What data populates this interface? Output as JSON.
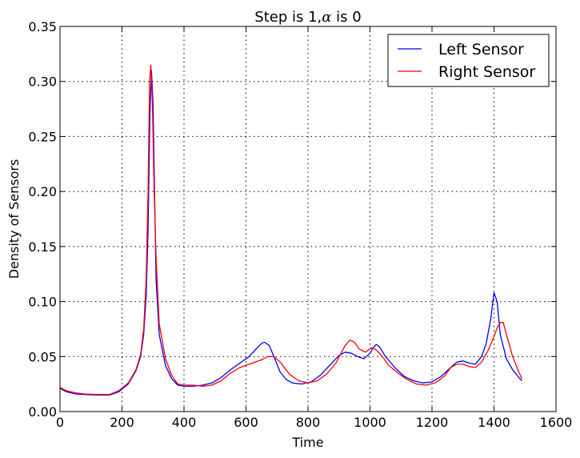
{
  "chart_data": {
    "type": "line",
    "title_prefix": "Step is 1,",
    "title_symbol": "α",
    "title_suffix": " is 0",
    "xlabel": "Time",
    "ylabel": "Density of Sensors",
    "xlim": [
      0,
      1600
    ],
    "ylim": [
      0,
      0.35
    ],
    "xticks": [
      0,
      200,
      400,
      600,
      800,
      1000,
      1200,
      1400,
      1600
    ],
    "xtick_labels": [
      "0",
      "200",
      "400",
      "600",
      "800",
      "1000",
      "1200",
      "1400",
      "1600"
    ],
    "yticks": [
      0,
      0.05,
      0.1,
      0.15,
      0.2,
      0.25,
      0.3,
      0.35
    ],
    "ytick_labels": [
      "0.00",
      "0.05",
      "0.10",
      "0.15",
      "0.20",
      "0.25",
      "0.30",
      "0.35"
    ],
    "grid": true,
    "legend_position": "top-right",
    "series": [
      {
        "name": "Left Sensor",
        "color": "#0000ff",
        "x": [
          0,
          20,
          50,
          80,
          120,
          160,
          190,
          220,
          245,
          260,
          270,
          278,
          284,
          290,
          295,
          300,
          305,
          310,
          320,
          340,
          360,
          380,
          400,
          430,
          460,
          490,
          520,
          550,
          580,
          610,
          630,
          650,
          660,
          675,
          690,
          710,
          730,
          750,
          780,
          810,
          840,
          870,
          900,
          920,
          940,
          960,
          980,
          1000,
          1010,
          1020,
          1030,
          1050,
          1080,
          1110,
          1140,
          1170,
          1200,
          1230,
          1260,
          1280,
          1300,
          1320,
          1340,
          1360,
          1375,
          1390,
          1400,
          1410,
          1420,
          1440,
          1460,
          1480,
          1490
        ],
        "y": [
          0.021,
          0.018,
          0.016,
          0.0155,
          0.015,
          0.015,
          0.018,
          0.025,
          0.037,
          0.05,
          0.07,
          0.105,
          0.165,
          0.27,
          0.31,
          0.28,
          0.2,
          0.12,
          0.07,
          0.042,
          0.03,
          0.024,
          0.023,
          0.023,
          0.024,
          0.026,
          0.031,
          0.038,
          0.044,
          0.05,
          0.056,
          0.062,
          0.063,
          0.06,
          0.05,
          0.036,
          0.029,
          0.026,
          0.025,
          0.027,
          0.033,
          0.042,
          0.051,
          0.054,
          0.053,
          0.05,
          0.048,
          0.053,
          0.058,
          0.061,
          0.059,
          0.05,
          0.04,
          0.032,
          0.028,
          0.026,
          0.027,
          0.032,
          0.04,
          0.045,
          0.046,
          0.044,
          0.043,
          0.05,
          0.062,
          0.085,
          0.108,
          0.1,
          0.07,
          0.048,
          0.038,
          0.031,
          0.028
        ]
      },
      {
        "name": "Right Sensor",
        "color": "#ff0000",
        "x": [
          0,
          20,
          50,
          80,
          120,
          160,
          190,
          220,
          245,
          260,
          270,
          278,
          284,
          289,
          293,
          298,
          303,
          310,
          320,
          340,
          360,
          380,
          400,
          430,
          460,
          490,
          520,
          550,
          580,
          620,
          650,
          670,
          690,
          710,
          740,
          770,
          800,
          830,
          860,
          890,
          910,
          920,
          935,
          950,
          965,
          985,
          1005,
          1020,
          1040,
          1060,
          1090,
          1120,
          1150,
          1180,
          1210,
          1240,
          1260,
          1280,
          1300,
          1320,
          1340,
          1360,
          1380,
          1400,
          1410,
          1420,
          1430,
          1440,
          1460,
          1480,
          1490
        ],
        "y": [
          0.022,
          0.019,
          0.017,
          0.016,
          0.0155,
          0.0155,
          0.019,
          0.026,
          0.038,
          0.052,
          0.075,
          0.12,
          0.2,
          0.3,
          0.315,
          0.28,
          0.21,
          0.14,
          0.08,
          0.048,
          0.033,
          0.025,
          0.024,
          0.024,
          0.023,
          0.024,
          0.028,
          0.035,
          0.04,
          0.044,
          0.047,
          0.05,
          0.05,
          0.045,
          0.034,
          0.028,
          0.026,
          0.028,
          0.034,
          0.044,
          0.055,
          0.06,
          0.065,
          0.063,
          0.057,
          0.054,
          0.058,
          0.056,
          0.05,
          0.042,
          0.035,
          0.029,
          0.025,
          0.024,
          0.026,
          0.032,
          0.04,
          0.043,
          0.043,
          0.041,
          0.04,
          0.045,
          0.055,
          0.068,
          0.076,
          0.081,
          0.081,
          0.07,
          0.05,
          0.036,
          0.03
        ]
      }
    ]
  }
}
